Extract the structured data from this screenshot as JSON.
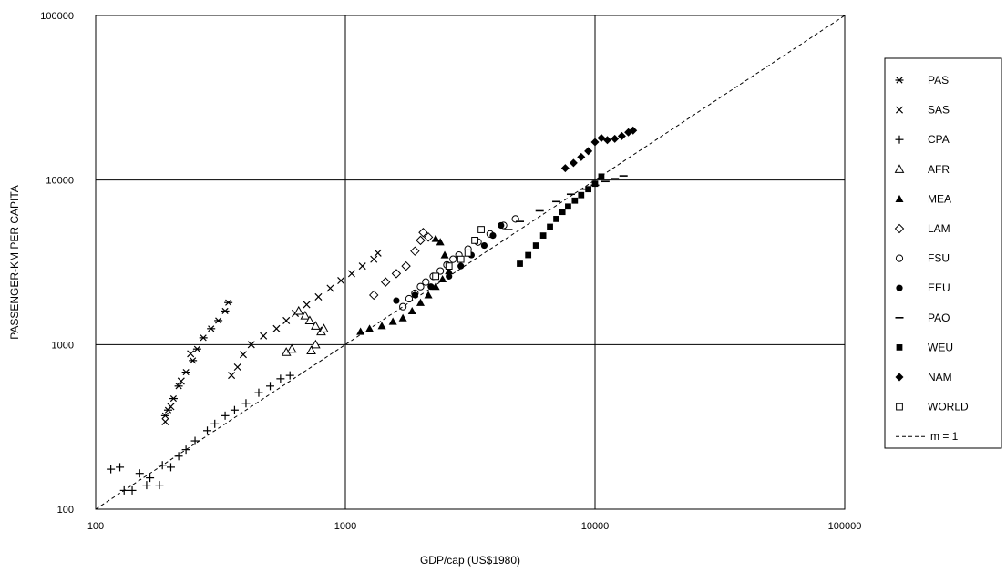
{
  "chart_data": {
    "type": "scatter",
    "title": "",
    "xlabel": "GDP/cap (US$1980)",
    "ylabel": "PASSENGER-KM PER CAPITA",
    "xscale": "log",
    "yscale": "log",
    "xlim": [
      100,
      100000
    ],
    "ylim": [
      100,
      100000
    ],
    "x_ticks": [
      "100",
      "1000",
      "10000",
      "100000"
    ],
    "y_ticks": [
      "100",
      "1000",
      "10000",
      "100000"
    ],
    "grid": true,
    "legend_position": "right",
    "series": [
      {
        "name": "PAS",
        "marker": "asterisk",
        "points": [
          [
            190,
            370
          ],
          [
            195,
            400
          ],
          [
            205,
            470
          ],
          [
            215,
            560
          ],
          [
            230,
            680
          ],
          [
            245,
            800
          ],
          [
            255,
            940
          ],
          [
            270,
            1100
          ],
          [
            290,
            1250
          ],
          [
            310,
            1400
          ],
          [
            330,
            1600
          ],
          [
            340,
            1800
          ]
        ]
      },
      {
        "name": "SAS",
        "marker": "x",
        "points": [
          [
            190,
            340
          ],
          [
            200,
            420
          ],
          [
            220,
            600
          ],
          [
            240,
            880
          ],
          [
            350,
            650
          ],
          [
            370,
            730
          ],
          [
            390,
            870
          ],
          [
            420,
            1000
          ],
          [
            470,
            1130
          ],
          [
            530,
            1250
          ],
          [
            580,
            1400
          ],
          [
            630,
            1550
          ],
          [
            700,
            1750
          ],
          [
            780,
            1950
          ],
          [
            870,
            2200
          ],
          [
            960,
            2450
          ],
          [
            1060,
            2700
          ],
          [
            1170,
            3000
          ],
          [
            1300,
            3300
          ],
          [
            1350,
            3600
          ]
        ]
      },
      {
        "name": "CPA",
        "marker": "plus",
        "points": [
          [
            115,
            175
          ],
          [
            125,
            180
          ],
          [
            130,
            130
          ],
          [
            140,
            130
          ],
          [
            150,
            165
          ],
          [
            160,
            140
          ],
          [
            165,
            155
          ],
          [
            180,
            140
          ],
          [
            185,
            185
          ],
          [
            200,
            180
          ],
          [
            215,
            210
          ],
          [
            230,
            230
          ],
          [
            250,
            260
          ],
          [
            280,
            300
          ],
          [
            300,
            330
          ],
          [
            330,
            370
          ],
          [
            360,
            400
          ],
          [
            400,
            440
          ],
          [
            450,
            510
          ],
          [
            500,
            560
          ],
          [
            550,
            620
          ],
          [
            600,
            650
          ]
        ]
      },
      {
        "name": "AFR",
        "marker": "triangle-open",
        "points": [
          [
            580,
            900
          ],
          [
            610,
            940
          ],
          [
            650,
            1600
          ],
          [
            690,
            1500
          ],
          [
            720,
            1400
          ],
          [
            760,
            1300
          ],
          [
            800,
            1200
          ],
          [
            820,
            1250
          ],
          [
            760,
            1000
          ],
          [
            730,
            920
          ]
        ]
      },
      {
        "name": "MEA",
        "marker": "triangle-filled",
        "points": [
          [
            1150,
            1200
          ],
          [
            1250,
            1250
          ],
          [
            1400,
            1300
          ],
          [
            1550,
            1380
          ],
          [
            1700,
            1450
          ],
          [
            1850,
            1600
          ],
          [
            2000,
            1800
          ],
          [
            2150,
            2000
          ],
          [
            2300,
            2250
          ],
          [
            2450,
            2500
          ],
          [
            2600,
            2800
          ],
          [
            2500,
            3500
          ],
          [
            2400,
            4200
          ],
          [
            2300,
            4400
          ]
        ]
      },
      {
        "name": "LAM",
        "marker": "diamond-open",
        "points": [
          [
            1300,
            2000
          ],
          [
            1450,
            2400
          ],
          [
            1600,
            2700
          ],
          [
            1750,
            3000
          ],
          [
            1900,
            3700
          ],
          [
            2000,
            4300
          ],
          [
            2050,
            4800
          ],
          [
            2150,
            4500
          ]
        ]
      },
      {
        "name": "FSU",
        "marker": "circle-open",
        "points": [
          [
            1700,
            1700
          ],
          [
            1800,
            1900
          ],
          [
            1900,
            2050
          ],
          [
            2000,
            2250
          ],
          [
            2100,
            2400
          ],
          [
            2250,
            2600
          ],
          [
            2400,
            2800
          ],
          [
            2550,
            3050
          ],
          [
            2700,
            3300
          ],
          [
            2850,
            3500
          ],
          [
            3100,
            3800
          ],
          [
            3400,
            4200
          ],
          [
            3800,
            4700
          ],
          [
            4300,
            5300
          ],
          [
            4800,
            5800
          ]
        ]
      },
      {
        "name": "EEU",
        "marker": "circle-filled",
        "points": [
          [
            1600,
            1850
          ],
          [
            1900,
            2000
          ],
          [
            2200,
            2250
          ],
          [
            2600,
            2600
          ],
          [
            2900,
            3000
          ],
          [
            3200,
            3500
          ],
          [
            3600,
            4000
          ],
          [
            3900,
            4600
          ],
          [
            4200,
            5300
          ]
        ]
      },
      {
        "name": "PAO",
        "marker": "dash",
        "points": [
          [
            4500,
            5000
          ],
          [
            5000,
            5600
          ],
          [
            6000,
            6500
          ],
          [
            7000,
            7400
          ],
          [
            8000,
            8200
          ],
          [
            9000,
            8800
          ],
          [
            10000,
            9300
          ],
          [
            11000,
            9800
          ],
          [
            12000,
            10200
          ],
          [
            13000,
            10600
          ]
        ]
      },
      {
        "name": "WEU",
        "marker": "square-filled",
        "points": [
          [
            5000,
            3100
          ],
          [
            5400,
            3500
          ],
          [
            5800,
            4000
          ],
          [
            6200,
            4600
          ],
          [
            6600,
            5200
          ],
          [
            7000,
            5800
          ],
          [
            7400,
            6400
          ],
          [
            7800,
            6900
          ],
          [
            8300,
            7500
          ],
          [
            8800,
            8100
          ],
          [
            9400,
            8800
          ],
          [
            10000,
            9500
          ],
          [
            10600,
            10500
          ]
        ]
      },
      {
        "name": "NAM",
        "marker": "diamond-filled",
        "points": [
          [
            7600,
            11800
          ],
          [
            8200,
            12700
          ],
          [
            8800,
            13800
          ],
          [
            9400,
            15000
          ],
          [
            10000,
            17000
          ],
          [
            10600,
            18000
          ],
          [
            11200,
            17500
          ],
          [
            12000,
            17800
          ],
          [
            12800,
            18500
          ],
          [
            13600,
            19500
          ],
          [
            14200,
            20000
          ]
        ]
      },
      {
        "name": "WORLD",
        "marker": "square-open",
        "points": [
          [
            2300,
            2600
          ],
          [
            2600,
            3000
          ],
          [
            2900,
            3300
          ],
          [
            3100,
            3600
          ],
          [
            3300,
            4300
          ],
          [
            3500,
            5000
          ]
        ]
      },
      {
        "name": "m = 1",
        "marker": "line-dashed",
        "points": [
          [
            100,
            100
          ],
          [
            100000,
            100000
          ]
        ]
      }
    ]
  }
}
